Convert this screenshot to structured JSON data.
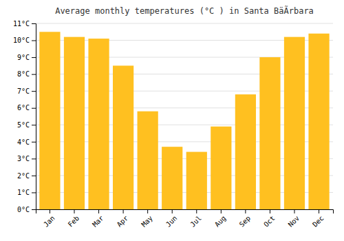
{
  "chart_data": {
    "type": "bar",
    "title": "Average monthly temperatures (°C ) in Santa BäÃrbara",
    "categories": [
      "Jan",
      "Feb",
      "Mar",
      "Apr",
      "May",
      "Jun",
      "Jul",
      "Aug",
      "Sep",
      "Oct",
      "Nov",
      "Dec"
    ],
    "values": [
      10.5,
      10.2,
      10.1,
      8.5,
      5.8,
      3.7,
      3.4,
      4.9,
      6.8,
      9.0,
      10.2,
      10.4
    ],
    "color": "#FFC020",
    "ylim": [
      0,
      11
    ],
    "yticks": [
      {
        "value": 0,
        "label": "0°C"
      },
      {
        "value": 1,
        "label": "1°C"
      },
      {
        "value": 2,
        "label": "2°C"
      },
      {
        "value": 3,
        "label": "3°C"
      },
      {
        "value": 4,
        "label": "4°C"
      },
      {
        "value": 5,
        "label": "5°C"
      },
      {
        "value": 6,
        "label": "6°C"
      },
      {
        "value": 7,
        "label": "7°C"
      },
      {
        "value": 8,
        "label": "8°C"
      },
      {
        "value": 9,
        "label": "9°C"
      },
      {
        "value": 10,
        "label": "10°C"
      },
      {
        "value": 11,
        "label": "11°C"
      }
    ],
    "grid": true
  }
}
